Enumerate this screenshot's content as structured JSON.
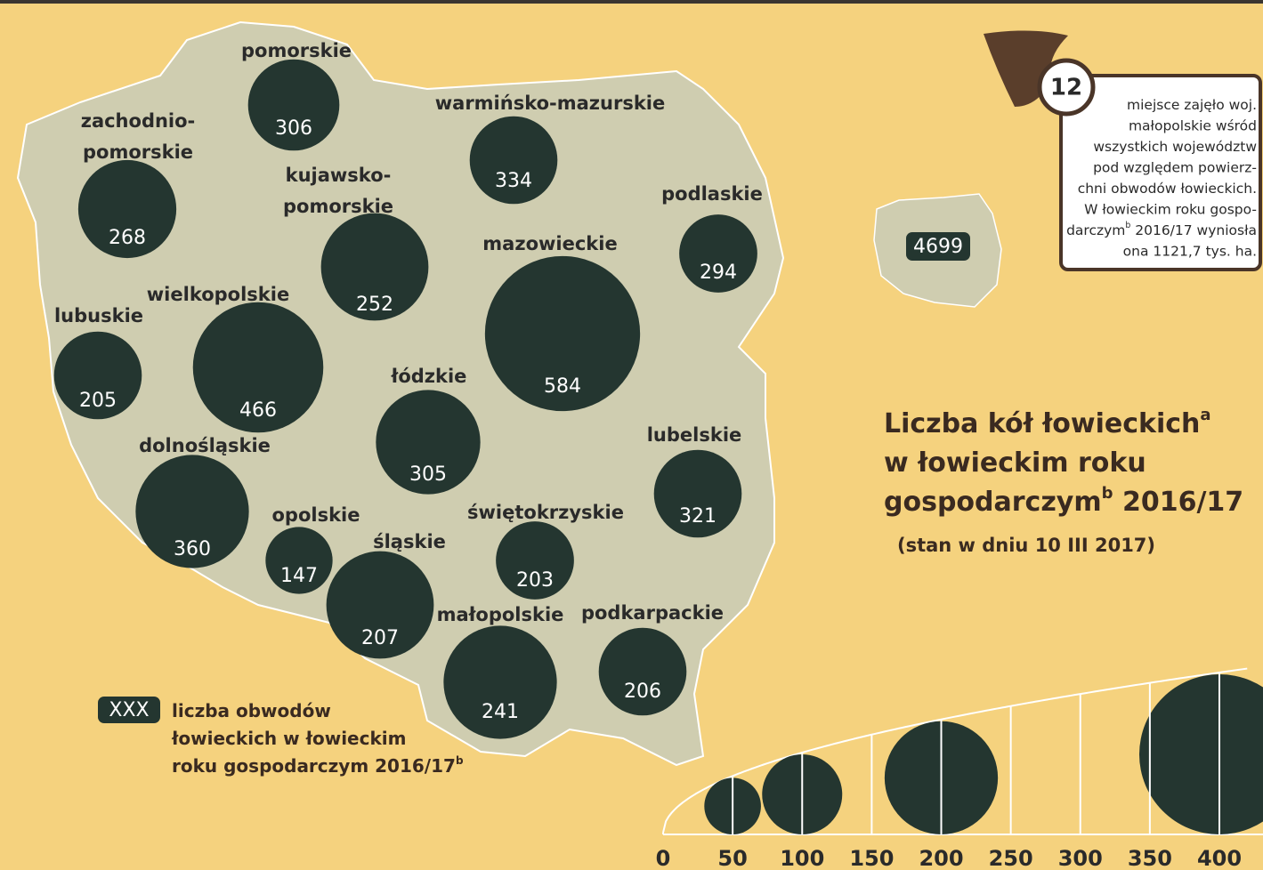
{
  "title": [
    {
      "text": "Liczba kół łowieckich",
      "sup": "a"
    },
    {
      "text": "w łowieckim roku"
    },
    {
      "text": "gospodarczym",
      "sup": "b",
      "after": " 2016/17"
    }
  ],
  "subtitle": "(stan w dniu 10 III 2017)",
  "regions": [
    {
      "name": [
        "pomorskie"
      ],
      "value": 306,
      "clubs": 130
    },
    {
      "name": [
        "zachodnio-",
        "pomorskie"
      ],
      "value": 268,
      "clubs": 150
    },
    {
      "name": [
        "warmińsko-mazurskie"
      ],
      "value": 334,
      "clubs": 120
    },
    {
      "name": [
        "kujawsko-",
        "pomorskie"
      ],
      "value": 252,
      "clubs": 180
    },
    {
      "name": [
        "podlaskie"
      ],
      "value": 294,
      "clubs": 95
    },
    {
      "name": [
        "mazowieckie"
      ],
      "value": 584,
      "clubs": 375
    },
    {
      "name": [
        "lubuskie"
      ],
      "value": 205,
      "clubs": 120
    },
    {
      "name": [
        "wielkopolskie"
      ],
      "value": 466,
      "clubs": 265
    },
    {
      "name": [
        "łódzkie"
      ],
      "value": 305,
      "clubs": 170
    },
    {
      "name": [
        "lubelskie"
      ],
      "value": 321,
      "clubs": 120
    },
    {
      "name": [
        "dolnośląskie"
      ],
      "value": 360,
      "clubs": 200
    },
    {
      "name": [
        "opolskie"
      ],
      "value": 147,
      "clubs": 70
    },
    {
      "name": [
        "śląskie"
      ],
      "value": 207,
      "clubs": 180
    },
    {
      "name": [
        "świętokrzyskie"
      ],
      "value": 203,
      "clubs": 95
    },
    {
      "name": [
        "małopolskie"
      ],
      "value": 241,
      "clubs": 200
    },
    {
      "name": [
        "podkarpackie"
      ],
      "value": 206,
      "clubs": 120
    }
  ],
  "total": 4699,
  "info": {
    "rank": 12,
    "lines": [
      {
        "text": "miejsce zajęło woj."
      },
      {
        "text": "małopolskie wśród"
      },
      {
        "text": "wszystkich województw"
      },
      {
        "text": "pod względem powierz-"
      },
      {
        "text": "chni obwodów łowieckich."
      },
      {
        "text": "W łowieckim roku gospo-"
      },
      {
        "text": "darczym",
        "sup": "b",
        "after": " 2016/17 wyniosła"
      },
      {
        "text": "ona 1121,7 tys. ha."
      }
    ]
  },
  "legend": {
    "sample": "XXX",
    "lines": [
      {
        "text": "liczba obwodów"
      },
      {
        "text": "łowieckich w łowieckim"
      },
      {
        "text": "roku gospodarczym 2016/17",
        "sup": "b"
      }
    ]
  },
  "scale": {
    "ticks": [
      0,
      50,
      100,
      150,
      200,
      250,
      300,
      350,
      400
    ],
    "circles": [
      50,
      100,
      200,
      400
    ]
  }
}
